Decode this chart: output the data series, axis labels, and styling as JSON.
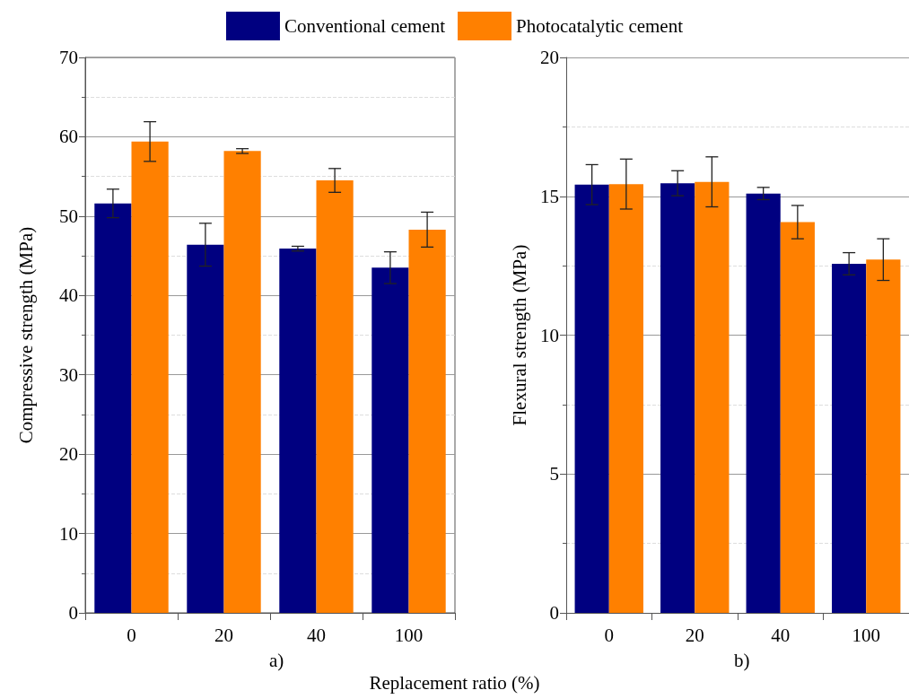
{
  "chart_data": [
    {
      "type": "bar",
      "ylabel": "Compressive strength (MPa)",
      "xlabel": "Replacement ratio (%)",
      "categories": [
        "0",
        "20",
        "40",
        "100"
      ],
      "series": [
        {
          "name": "Conventional cement",
          "color": "#000080",
          "values": [
            51.6,
            46.4,
            45.9,
            43.5
          ],
          "errors": [
            1.8,
            2.7,
            0.3,
            2.0
          ]
        },
        {
          "name": "Photocatalytic cement",
          "color": "#ff8000",
          "values": [
            59.4,
            58.2,
            54.5,
            48.3
          ],
          "errors": [
            2.5,
            0.3,
            1.5,
            2.2
          ]
        }
      ],
      "ylim": [
        0,
        70
      ],
      "yticks": [
        0,
        10,
        20,
        30,
        40,
        50,
        60,
        70
      ],
      "grid": "y",
      "legend": "top",
      "annotations": [
        "a)"
      ]
    },
    {
      "type": "bar",
      "ylabel": "Flexural strength (MPa)",
      "categories": [
        "0",
        "20",
        "40",
        "100"
      ],
      "series": [
        {
          "color": "#000080",
          "values": [
            15.42,
            15.47,
            15.1,
            12.57
          ],
          "errors": [
            0.72,
            0.45,
            0.22,
            0.4
          ]
        },
        {
          "color": "#ff8000",
          "values": [
            15.44,
            15.52,
            14.07,
            12.72
          ],
          "errors": [
            0.9,
            0.9,
            0.6,
            0.75
          ]
        }
      ],
      "ylim": [
        0,
        20
      ],
      "yticks": [
        0,
        5,
        10,
        15,
        20
      ],
      "grid": "y",
      "annotations": [
        "b)"
      ]
    }
  ]
}
